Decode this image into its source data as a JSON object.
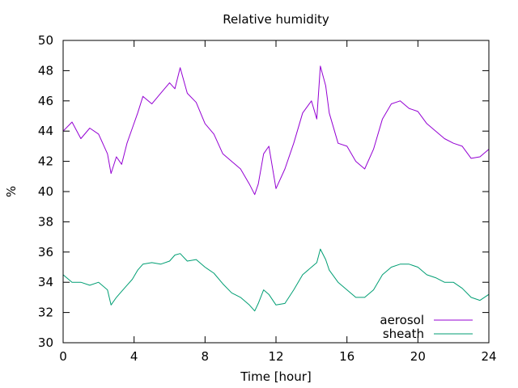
{
  "chart_data": {
    "type": "line",
    "title": "Relative humidity",
    "xlabel": "Time [hour]",
    "ylabel": "%",
    "xlim": [
      0,
      24
    ],
    "ylim": [
      30,
      50
    ],
    "xticks": [
      0,
      4,
      8,
      12,
      16,
      20,
      24
    ],
    "yticks": [
      30,
      32,
      34,
      36,
      38,
      40,
      42,
      44,
      46,
      48,
      50
    ],
    "grid": false,
    "legend_position": "bottom-right",
    "series": [
      {
        "name": "aerosol",
        "color": "#9400d3",
        "x": [
          0,
          0.5,
          1,
          1.5,
          2,
          2.5,
          2.7,
          3,
          3.3,
          3.6,
          3.9,
          4.2,
          4.5,
          5,
          5.5,
          6,
          6.3,
          6.6,
          7,
          7.5,
          8,
          8.5,
          9,
          9.5,
          10,
          10.5,
          10.8,
          11,
          11.3,
          11.6,
          12,
          12.5,
          13,
          13.5,
          14,
          14.3,
          14.5,
          14.8,
          15,
          15.5,
          16,
          16.5,
          17,
          17.5,
          18,
          18.5,
          19,
          19.5,
          20,
          20.5,
          21,
          21.5,
          22,
          22.5,
          23,
          23.5,
          24
        ],
        "y": [
          44.0,
          44.6,
          43.5,
          44.2,
          43.8,
          42.5,
          41.2,
          42.3,
          41.8,
          43.2,
          44.2,
          45.2,
          46.3,
          45.8,
          46.5,
          47.2,
          46.8,
          48.2,
          46.5,
          45.9,
          44.5,
          43.8,
          42.5,
          42.0,
          41.5,
          40.5,
          39.8,
          40.5,
          42.5,
          43.0,
          40.2,
          41.5,
          43.2,
          45.2,
          46.0,
          44.8,
          48.3,
          47.0,
          45.2,
          43.2,
          43.0,
          42.0,
          41.5,
          42.8,
          44.8,
          45.8,
          46.0,
          45.5,
          45.3,
          44.5,
          44.0,
          43.5,
          43.2,
          43.0,
          42.2,
          42.3,
          42.8
        ]
      },
      {
        "name": "sheath",
        "color": "#009e73",
        "x": [
          0,
          0.5,
          1,
          1.5,
          2,
          2.5,
          2.7,
          3,
          3.3,
          3.6,
          3.9,
          4.2,
          4.5,
          5,
          5.5,
          6,
          6.3,
          6.6,
          7,
          7.5,
          8,
          8.5,
          9,
          9.5,
          10,
          10.5,
          10.8,
          11,
          11.3,
          11.6,
          12,
          12.5,
          13,
          13.5,
          14,
          14.3,
          14.5,
          14.8,
          15,
          15.5,
          16,
          16.5,
          17,
          17.5,
          18,
          18.5,
          19,
          19.5,
          20,
          20.5,
          21,
          21.5,
          22,
          22.5,
          23,
          23.5,
          24
        ],
        "y": [
          34.5,
          34.0,
          34.0,
          33.8,
          34.0,
          33.5,
          32.5,
          33.0,
          33.4,
          33.8,
          34.2,
          34.8,
          35.2,
          35.3,
          35.2,
          35.4,
          35.8,
          35.9,
          35.4,
          35.5,
          35.0,
          34.6,
          33.9,
          33.3,
          33.0,
          32.5,
          32.1,
          32.6,
          33.5,
          33.2,
          32.5,
          32.6,
          33.5,
          34.5,
          35.0,
          35.3,
          36.2,
          35.5,
          34.8,
          34.0,
          33.5,
          33.0,
          33.0,
          33.5,
          34.5,
          35.0,
          35.2,
          35.2,
          35.0,
          34.5,
          34.3,
          34.0,
          34.0,
          33.6,
          33.0,
          32.8,
          33.2
        ]
      }
    ]
  }
}
